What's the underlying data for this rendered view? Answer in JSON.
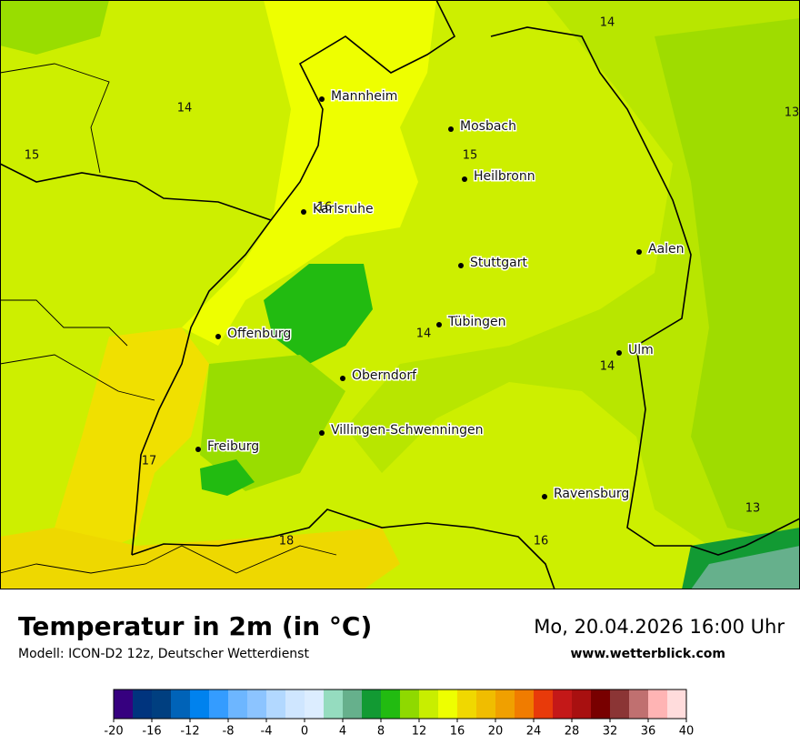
{
  "map": {
    "cities": [
      "Mannheim",
      "Mosbach",
      "Heilbronn",
      "Karlsruhe",
      "Aalen",
      "Stuttgart",
      "Tübingen",
      "Ulm",
      "Offenburg",
      "Oberndorf",
      "Villingen-Schwenningen",
      "Freiburg",
      "Ravensburg"
    ],
    "isotherm_labels": [
      14,
      13,
      14,
      15,
      15,
      16,
      14,
      14,
      17,
      13,
      18,
      16
    ]
  },
  "footer": {
    "title": "Temperatur in 2m (in °C)",
    "model": "Modell: ICON-D2 12z, Deutscher Wetterdienst",
    "datetime": "Mo, 20.04.2026 16:00 Uhr",
    "website": "www.wetterblick.com"
  },
  "legend": {
    "range": [
      -20,
      40
    ],
    "step": 2,
    "colors": [
      "#36007f",
      "#00347e",
      "#003f80",
      "#0063b8",
      "#0082ee",
      "#349cff",
      "#6db6ff",
      "#8cc4ff",
      "#b2d8ff",
      "#cfe6ff",
      "#dcedff",
      "#95dcbf",
      "#66b08c",
      "#129a33",
      "#22bb11",
      "#8fd900",
      "#c8ee00",
      "#eeff00",
      "#f0d800",
      "#f0bd00",
      "#f0a000",
      "#f07c00",
      "#e83a0a",
      "#c41818",
      "#a81010",
      "#780000",
      "#8b3535",
      "#c07070",
      "#ffb4b4",
      "#ffdcdc"
    ],
    "ticks": [
      -20,
      -16,
      -12,
      -8,
      -4,
      0,
      4,
      8,
      12,
      16,
      20,
      24,
      28,
      32,
      36,
      40
    ]
  }
}
